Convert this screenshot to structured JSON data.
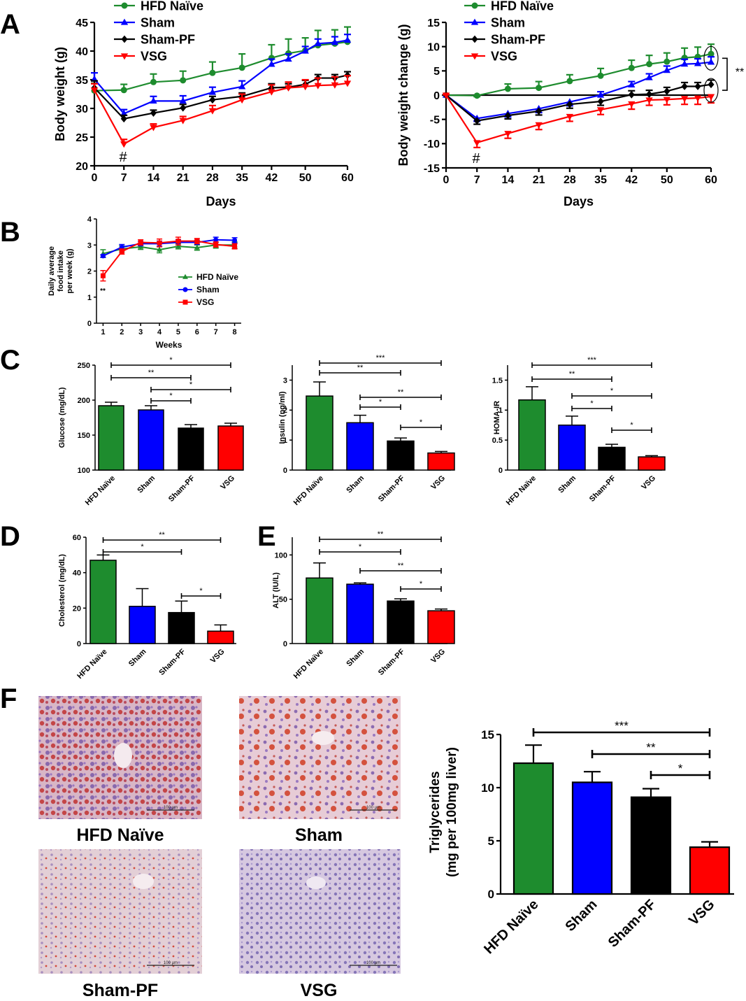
{
  "panel_letters": [
    "A",
    "B",
    "C",
    "D",
    "E",
    "F"
  ],
  "colors": {
    "hfd": "#1e8c2e",
    "sham": "#0000ff",
    "shampf": "#000000",
    "vsg": "#ff0000"
  },
  "histology": {
    "captions": [
      "HFD Naïve",
      "Sham",
      "Sham-PF",
      "VSG"
    ],
    "scale_bar_label": "100 µm"
  },
  "chart_data": [
    {
      "id": "A1",
      "type": "line",
      "ylabel": "Body  weight (g)",
      "xlabel": "Days",
      "xlim": [
        0,
        60
      ],
      "ylim": [
        20,
        45
      ],
      "xticks": [
        0,
        7,
        14,
        21,
        28,
        35,
        42,
        50,
        60
      ],
      "yticks": [
        20,
        25,
        30,
        35,
        40,
        45
      ],
      "annotations": [
        {
          "text": "#",
          "x": 7
        }
      ],
      "series": [
        {
          "name": "HFD Naïve",
          "marker": "circle",
          "color": "#1e8c2e",
          "x": [
            0,
            7,
            14,
            21,
            28,
            35,
            42,
            46,
            50,
            53,
            57,
            60
          ],
          "y": [
            33.1,
            33.2,
            34.6,
            34.9,
            36.2,
            37.1,
            38.8,
            39.6,
            40.1,
            41.0,
            41.3,
            41.6
          ],
          "err": [
            1.3,
            1.0,
            1.4,
            1.6,
            1.9,
            2.4,
            2.3,
            2.5,
            2.2,
            2.6,
            2.4,
            2.6
          ]
        },
        {
          "name": "Sham",
          "marker": "triangle-up",
          "color": "#0000ff",
          "x": [
            0,
            7,
            14,
            21,
            28,
            35,
            42,
            46,
            50,
            53,
            57,
            60
          ],
          "y": [
            35.1,
            29.1,
            31.3,
            31.3,
            32.8,
            33.8,
            37.7,
            38.6,
            40.0,
            41.3,
            41.5,
            41.9
          ],
          "err": [
            1.1,
            0.7,
            0.8,
            0.9,
            0.9,
            1.0,
            0.9,
            0.9,
            0.8,
            0.8,
            1.0,
            1.0
          ]
        },
        {
          "name": "Sham-PF",
          "marker": "diamond",
          "color": "#000000",
          "x": [
            0,
            7,
            14,
            21,
            28,
            35,
            42,
            46,
            50,
            53,
            57,
            60
          ],
          "y": [
            33.6,
            28.2,
            29.2,
            30.1,
            31.5,
            32.1,
            33.6,
            33.7,
            34.2,
            35.3,
            35.3,
            35.8
          ],
          "err": [
            1.2,
            0.6,
            0.5,
            0.6,
            0.6,
            0.6,
            0.7,
            0.6,
            0.7,
            0.6,
            0.6,
            0.6
          ]
        },
        {
          "name": "VSG",
          "marker": "triangle-down",
          "color": "#ff0000",
          "x": [
            0,
            7,
            14,
            21,
            28,
            35,
            42,
            46,
            50,
            53,
            57,
            60
          ],
          "y": [
            33.2,
            23.8,
            26.7,
            27.9,
            29.6,
            31.5,
            32.9,
            33.6,
            33.8,
            34.0,
            34.1,
            34.4
          ],
          "err": [
            1.1,
            0.8,
            0.6,
            0.7,
            0.9,
            1.0,
            1.2,
            1.0,
            1.2,
            1.3,
            1.4,
            1.3
          ]
        }
      ]
    },
    {
      "id": "A2",
      "type": "line",
      "ylabel": "Body  weight change (g)",
      "xlabel": "Days",
      "xlim": [
        0,
        60
      ],
      "ylim": [
        -15,
        15
      ],
      "xticks": [
        0,
        7,
        14,
        21,
        28,
        35,
        42,
        50,
        60
      ],
      "yticks": [
        -15,
        -10,
        -5,
        0,
        5,
        10,
        15
      ],
      "annotations": [
        {
          "text": "#",
          "x": 7
        },
        {
          "text": "**",
          "x": 60
        }
      ],
      "series": [
        {
          "name": "HFD Naïve",
          "marker": "circle",
          "color": "#1e8c2e",
          "x": [
            0,
            7,
            14,
            21,
            28,
            35,
            42,
            46,
            50,
            54,
            57,
            60
          ],
          "y": [
            0,
            -0.1,
            1.3,
            1.5,
            2.9,
            4.0,
            5.6,
            6.4,
            6.9,
            7.7,
            7.9,
            8.5
          ],
          "err": [
            0.1,
            0.2,
            1.0,
            1.3,
            1.3,
            1.5,
            1.6,
            1.8,
            1.8,
            2.0,
            2.0,
            2.0
          ]
        },
        {
          "name": "Sham",
          "marker": "triangle-up",
          "color": "#0000ff",
          "x": [
            0,
            7,
            14,
            21,
            28,
            35,
            42,
            46,
            50,
            54,
            57,
            60
          ],
          "y": [
            0,
            -4.8,
            -3.8,
            -2.8,
            -1.4,
            0.0,
            2.1,
            3.6,
            5.1,
            6.4,
            6.5,
            6.8
          ],
          "err": [
            0.1,
            0.6,
            0.7,
            0.8,
            0.8,
            0.7,
            0.7,
            0.8,
            0.9,
            1.0,
            1.0,
            1.1
          ]
        },
        {
          "name": "Sham-PF",
          "marker": "diamond",
          "color": "#000000",
          "x": [
            0,
            7,
            14,
            21,
            28,
            35,
            42,
            46,
            50,
            54,
            57,
            60
          ],
          "y": [
            0,
            -5.3,
            -4.2,
            -3.3,
            -1.9,
            -1.3,
            0.1,
            0.2,
            0.8,
            1.8,
            1.8,
            2.2
          ],
          "err": [
            0.1,
            0.7,
            0.7,
            0.8,
            0.8,
            0.8,
            0.8,
            0.8,
            0.8,
            0.8,
            0.8,
            0.9
          ]
        },
        {
          "name": "VSG",
          "marker": "triangle-down",
          "color": "#ff0000",
          "x": [
            0,
            7,
            14,
            21,
            28,
            35,
            42,
            46,
            50,
            54,
            57,
            60
          ],
          "y": [
            0,
            -9.8,
            -7.9,
            -6.1,
            -4.4,
            -3.0,
            -1.8,
            -1.0,
            -0.9,
            -0.7,
            -0.6,
            -0.3
          ],
          "err": [
            0.1,
            1.0,
            1.0,
            1.0,
            1.0,
            1.0,
            1.1,
            1.1,
            1.1,
            1.2,
            1.3,
            1.3
          ]
        }
      ]
    },
    {
      "id": "B",
      "type": "line",
      "ylabel": "Daily average food intake per week (g)",
      "xlabel": "Weeks",
      "xlim": [
        1,
        8
      ],
      "ylim": [
        0,
        4
      ],
      "xticks": [
        1,
        2,
        3,
        4,
        5,
        6,
        7,
        8
      ],
      "yticks": [
        0,
        1,
        2,
        3,
        4
      ],
      "annotations": [
        {
          "text": "**",
          "x": 1
        }
      ],
      "series": [
        {
          "name": "HFD Naïve",
          "marker": "triangle-up",
          "color": "#1e8c2e",
          "x": [
            1,
            2,
            3,
            4,
            5,
            6,
            7,
            8
          ],
          "y": [
            2.67,
            2.85,
            2.93,
            2.82,
            2.95,
            2.9,
            3.0,
            3.0
          ],
          "err": [
            0.15,
            0.12,
            0.1,
            0.12,
            0.1,
            0.1,
            0.12,
            0.12
          ]
        },
        {
          "name": "Sham",
          "marker": "circle",
          "color": "#0000ff",
          "x": [
            1,
            2,
            3,
            4,
            5,
            6,
            7,
            8
          ],
          "y": [
            2.58,
            2.92,
            3.05,
            3.05,
            3.1,
            3.1,
            3.2,
            3.18
          ],
          "err": [
            0.05,
            0.1,
            0.08,
            0.1,
            0.1,
            0.08,
            0.1,
            0.1
          ]
        },
        {
          "name": "VSG",
          "marker": "square",
          "color": "#ff0000",
          "x": [
            1,
            2,
            3,
            4,
            5,
            6,
            7,
            8
          ],
          "y": [
            1.82,
            2.75,
            3.1,
            3.08,
            3.15,
            3.15,
            3.02,
            2.95
          ],
          "err": [
            0.2,
            0.1,
            0.1,
            0.15,
            0.15,
            0.1,
            0.1,
            0.1
          ]
        }
      ]
    },
    {
      "id": "C1",
      "type": "bar",
      "ylabel": "Glucose (mg/dL)",
      "categories": [
        "HFD Naïve",
        "Sham",
        "Sham-PF",
        "VSG"
      ],
      "values": [
        192,
        186,
        160,
        163
      ],
      "err": [
        5,
        6,
        5,
        4
      ],
      "ylim": [
        100,
        250
      ],
      "yticks": [
        100,
        150,
        200,
        250
      ],
      "brackets": [
        {
          "from": 0,
          "to": 3,
          "label": "*"
        },
        {
          "from": 0,
          "to": 2,
          "label": "**"
        },
        {
          "from": 1,
          "to": 3,
          "label": "*"
        },
        {
          "from": 1,
          "to": 2,
          "label": "*"
        }
      ]
    },
    {
      "id": "C2",
      "type": "bar",
      "ylabel": "Insulin (ng/ml)",
      "categories": [
        "HFD Naïve",
        "Sham",
        "Sham-PF",
        "VSG"
      ],
      "values": [
        2.47,
        1.58,
        0.97,
        0.57
      ],
      "err": [
        0.47,
        0.25,
        0.1,
        0.05
      ],
      "ylim": [
        0,
        3.5
      ],
      "yticks": [
        0,
        1,
        2,
        3
      ],
      "brackets": [
        {
          "from": 0,
          "to": 3,
          "label": "***"
        },
        {
          "from": 0,
          "to": 2,
          "label": "**"
        },
        {
          "from": 1,
          "to": 3,
          "label": "**"
        },
        {
          "from": 1,
          "to": 2,
          "label": "*"
        },
        {
          "from": 2,
          "to": 3,
          "label": "*"
        }
      ]
    },
    {
      "id": "C3",
      "type": "bar",
      "ylabel": "HOMA-IR",
      "categories": [
        "HFD Naïve",
        "Sham",
        "Sham-PF",
        "VSG"
      ],
      "values": [
        1.17,
        0.75,
        0.38,
        0.22
      ],
      "err": [
        0.22,
        0.15,
        0.05,
        0.02
      ],
      "ylim": [
        0,
        1.75
      ],
      "yticks": [
        0.0,
        0.5,
        1.0,
        1.5
      ],
      "brackets": [
        {
          "from": 0,
          "to": 3,
          "label": "***"
        },
        {
          "from": 0,
          "to": 2,
          "label": "**"
        },
        {
          "from": 1,
          "to": 3,
          "label": "*"
        },
        {
          "from": 1,
          "to": 2,
          "label": "*"
        },
        {
          "from": 2,
          "to": 3,
          "label": "*"
        }
      ]
    },
    {
      "id": "D",
      "type": "bar",
      "ylabel": "Cholesterol (mg/dL)",
      "categories": [
        "HFD Naïve",
        "Sham",
        "Sham-PF",
        "VSG"
      ],
      "values": [
        47,
        21,
        17.5,
        7
      ],
      "err": [
        3,
        10,
        6.5,
        3.5
      ],
      "ylim": [
        0,
        60
      ],
      "yticks": [
        0,
        20,
        40,
        60
      ],
      "brackets": [
        {
          "from": 0,
          "to": 3,
          "label": "**"
        },
        {
          "from": 0,
          "to": 2,
          "label": "*"
        },
        {
          "from": 2,
          "to": 3,
          "label": "*"
        }
      ]
    },
    {
      "id": "E",
      "type": "bar",
      "ylabel": "ALT (IU/L)",
      "categories": [
        "HFD Naïve",
        "Sham",
        "Sham-PF",
        "VSG"
      ],
      "values": [
        74,
        67,
        48,
        37
      ],
      "err": [
        17,
        1.5,
        2.5,
        2
      ],
      "ylim": [
        0,
        120
      ],
      "yticks": [
        0,
        50,
        100
      ],
      "brackets": [
        {
          "from": 0,
          "to": 3,
          "label": "**"
        },
        {
          "from": 0,
          "to": 2,
          "label": "*"
        },
        {
          "from": 1,
          "to": 3,
          "label": "**"
        },
        {
          "from": 2,
          "to": 3,
          "label": "*"
        }
      ]
    },
    {
      "id": "F",
      "type": "bar",
      "ylabel": "Triglycerides (mg per 100mg liver)",
      "categories": [
        "HFD Naïve",
        "Sham",
        "Sham-PF",
        "VSG"
      ],
      "values": [
        12.3,
        10.5,
        9.1,
        4.4
      ],
      "err": [
        1.7,
        1.0,
        0.8,
        0.5
      ],
      "ylim": [
        0,
        15
      ],
      "yticks": [
        0,
        5,
        10,
        15
      ],
      "brackets": [
        {
          "from": 0,
          "to": 3,
          "label": "***"
        },
        {
          "from": 1,
          "to": 3,
          "label": "**"
        },
        {
          "from": 2,
          "to": 3,
          "label": "*"
        }
      ]
    }
  ]
}
